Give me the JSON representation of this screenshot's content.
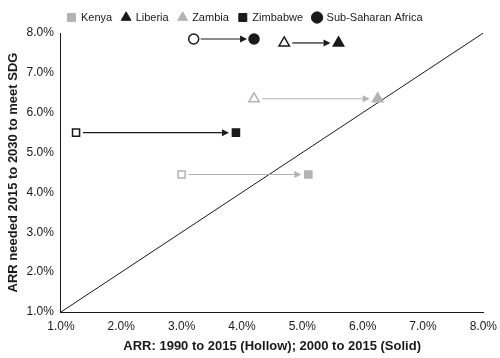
{
  "chart_data": {
    "type": "scatter",
    "x_label": "ARR: 1990 to 2015 (Hollow); 2000 to 2015 (Solid)",
    "y_label": "ARR needed 2015 to 2030 to meet SDG",
    "xlim": [
      1,
      8
    ],
    "ylim": [
      1,
      8
    ],
    "xticks": [
      {
        "value": 1,
        "label": "1.0%"
      },
      {
        "value": 2,
        "label": "2.0%"
      },
      {
        "value": 3,
        "label": "3.0%"
      },
      {
        "value": 4,
        "label": "4.0%"
      },
      {
        "value": 5,
        "label": "5.0%"
      },
      {
        "value": 6,
        "label": "6.0%"
      },
      {
        "value": 7,
        "label": "7.0%"
      },
      {
        "value": 8,
        "label": "8.0%"
      }
    ],
    "yticks": [
      {
        "value": 1,
        "label": "1.0%"
      },
      {
        "value": 2,
        "label": "2.0%"
      },
      {
        "value": 3,
        "label": "3.0%"
      },
      {
        "value": 4,
        "label": "4.0%"
      },
      {
        "value": 5,
        "label": "5.0%"
      },
      {
        "value": 6,
        "label": "6.0%"
      },
      {
        "value": 7,
        "label": "7.0%"
      },
      {
        "value": 8,
        "label": "8.0%"
      }
    ],
    "grid": false,
    "legend": "top",
    "series": [
      {
        "name": "Kenya",
        "color": "#b3b3b3",
        "marker": "square",
        "x": [
          3.0,
          5.1
        ],
        "y": [
          4.45,
          4.45
        ]
      },
      {
        "name": "Liberia",
        "color": "#1a1a1a",
        "marker": "triangle",
        "x": [
          4.7,
          5.6
        ],
        "y": [
          7.75,
          7.75
        ]
      },
      {
        "name": "Zambia",
        "color": "#b3b3b3",
        "marker": "triangle",
        "x": [
          4.2,
          6.25
        ],
        "y": [
          6.35,
          6.35
        ]
      },
      {
        "name": "Zimbabwe",
        "color": "#1a1a1a",
        "marker": "square",
        "x": [
          1.25,
          3.9
        ],
        "y": [
          5.5,
          5.5
        ]
      },
      {
        "name": "Sub-Saharan Africa",
        "color": "#1a1a1a",
        "marker": "circle",
        "x": [
          3.2,
          4.2
        ],
        "y": [
          7.85,
          7.85
        ]
      }
    ],
    "reference_line": {
      "x": [
        1,
        8
      ],
      "y": [
        1,
        8
      ],
      "color": "#1a1a1a"
    }
  }
}
